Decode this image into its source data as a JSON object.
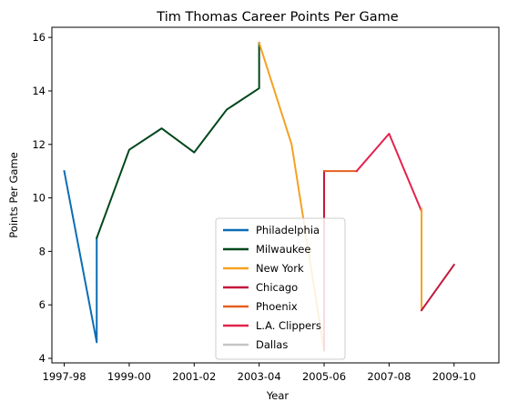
{
  "chart_data": {
    "type": "line",
    "title": "Tim Thomas  Career Points Per Game",
    "xlabel": "Year",
    "ylabel": "Points Per Game",
    "xlim": [
      1996.62,
      2010.38
    ],
    "ylim": [
      3.83,
      16.38
    ],
    "x_ticks": [
      {
        "value": 1997,
        "label": "1997-98"
      },
      {
        "value": 1999,
        "label": "1999-00"
      },
      {
        "value": 2001,
        "label": "2001-02"
      },
      {
        "value": 2003,
        "label": "2003-04"
      },
      {
        "value": 2005,
        "label": "2005-06"
      },
      {
        "value": 2007,
        "label": "2007-08"
      },
      {
        "value": 2009,
        "label": "2009-10"
      }
    ],
    "y_ticks": [
      4,
      6,
      8,
      10,
      12,
      14,
      16
    ],
    "grid": false,
    "legend_position": "lower-center",
    "series": [
      {
        "name": "Philadelphia",
        "color": "#0b6db5",
        "points": [
          [
            1997,
            11.0
          ],
          [
            1998,
            4.6
          ],
          [
            1998,
            8.5
          ]
        ]
      },
      {
        "name": "Milwaukee",
        "color": "#00471b",
        "points": [
          [
            1998,
            8.5
          ],
          [
            1999,
            11.8
          ],
          [
            2000,
            12.6
          ],
          [
            2001,
            11.7
          ],
          [
            2002,
            13.3
          ],
          [
            2003,
            14.1
          ],
          [
            2003,
            15.8
          ]
        ]
      },
      {
        "name": "New York",
        "color": "#f5a123",
        "points": [
          [
            2003,
            15.8
          ],
          [
            2004,
            12.0
          ],
          [
            2005,
            4.3
          ],
          [
            2005,
            11.0
          ]
        ]
      },
      {
        "name": "Chicago",
        "color": "#c4183c",
        "points": [
          [
            2005,
            4.3
          ],
          [
            2005,
            11.0
          ]
        ]
      },
      {
        "name": "Phoenix",
        "color": "#e56020",
        "points": [
          [
            2005,
            11.0
          ],
          [
            2006,
            11.0
          ]
        ]
      },
      {
        "name": "L.A. Clippers",
        "color": "#e4224c",
        "points": [
          [
            2006,
            11.0
          ],
          [
            2007,
            12.4
          ],
          [
            2008,
            9.5
          ]
        ]
      },
      {
        "name": "New York",
        "color": "#f5a123",
        "legend": false,
        "points": [
          [
            2008,
            9.6
          ],
          [
            2008,
            5.8
          ]
        ]
      },
      {
        "name": "Chicago",
        "color": "#c4183c",
        "legend": false,
        "points": [
          [
            2008,
            5.8
          ],
          [
            2009,
            7.5
          ]
        ]
      },
      {
        "name": "Dallas",
        "color": "#c4c4c4",
        "points": []
      }
    ]
  }
}
